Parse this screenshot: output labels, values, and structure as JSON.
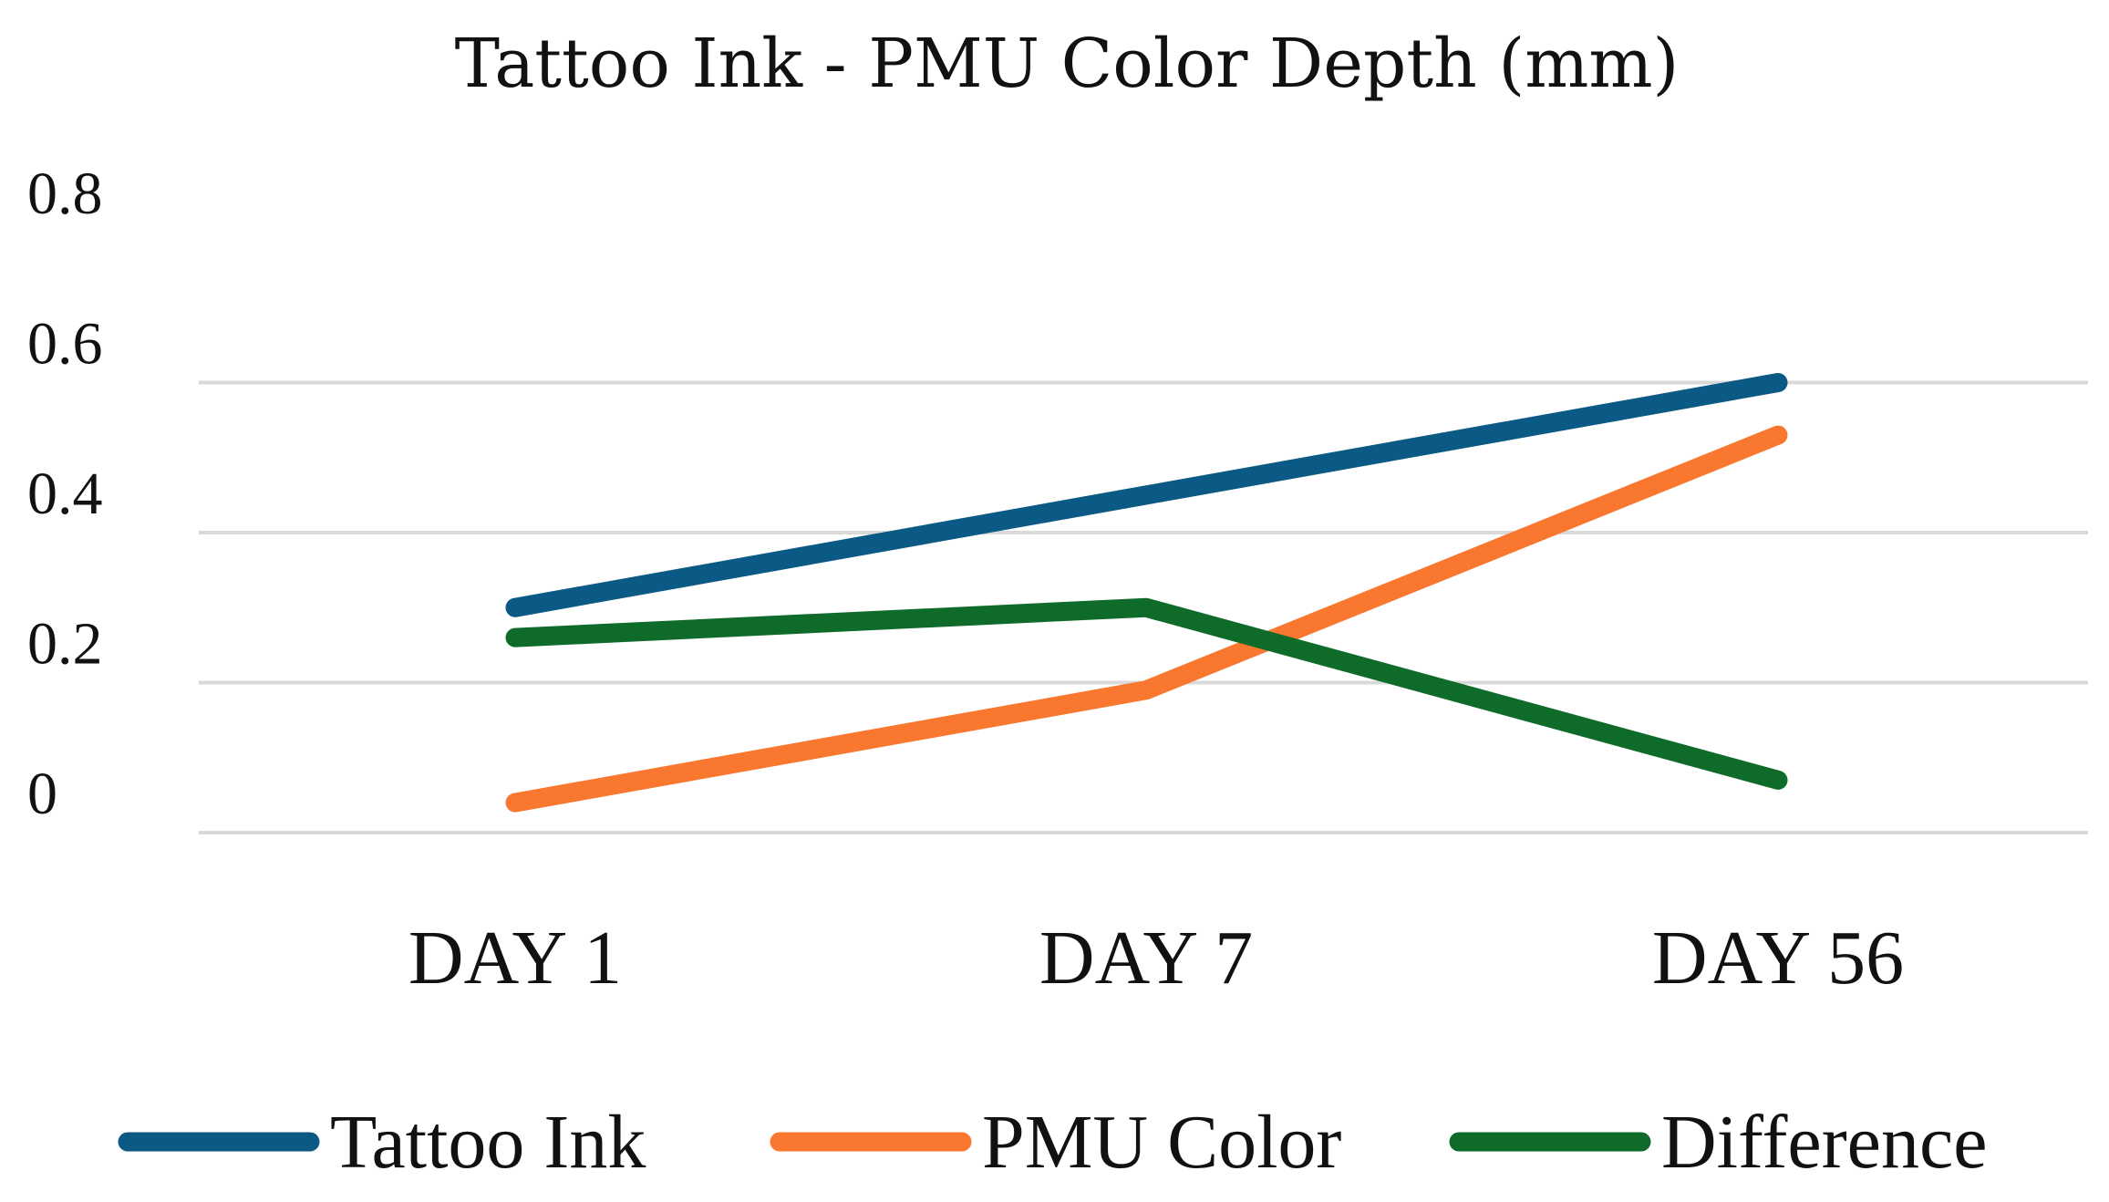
{
  "chart_data": {
    "type": "line",
    "title": "Tattoo Ink - PMU Color Depth (mm)",
    "xlabel": "",
    "ylabel": "",
    "categories": [
      "DAY 1",
      "DAY 7",
      "DAY 56"
    ],
    "ylim": [
      0,
      0.8
    ],
    "yticks": [
      "0",
      "0.2",
      "0.4",
      "0.6",
      "0.8"
    ],
    "grid": true,
    "legend_position": "bottom",
    "series": [
      {
        "name": "Tattoo Ink",
        "values": [
          0.3,
          0.45,
          0.6
        ],
        "color": "#0B5A85"
      },
      {
        "name": "PMU Color",
        "values": [
          0.04,
          0.19,
          0.53
        ],
        "color": "#F9772F"
      },
      {
        "name": "Difference",
        "values": [
          0.26,
          0.3,
          0.07
        ],
        "color": "#0E6B2A"
      }
    ]
  }
}
